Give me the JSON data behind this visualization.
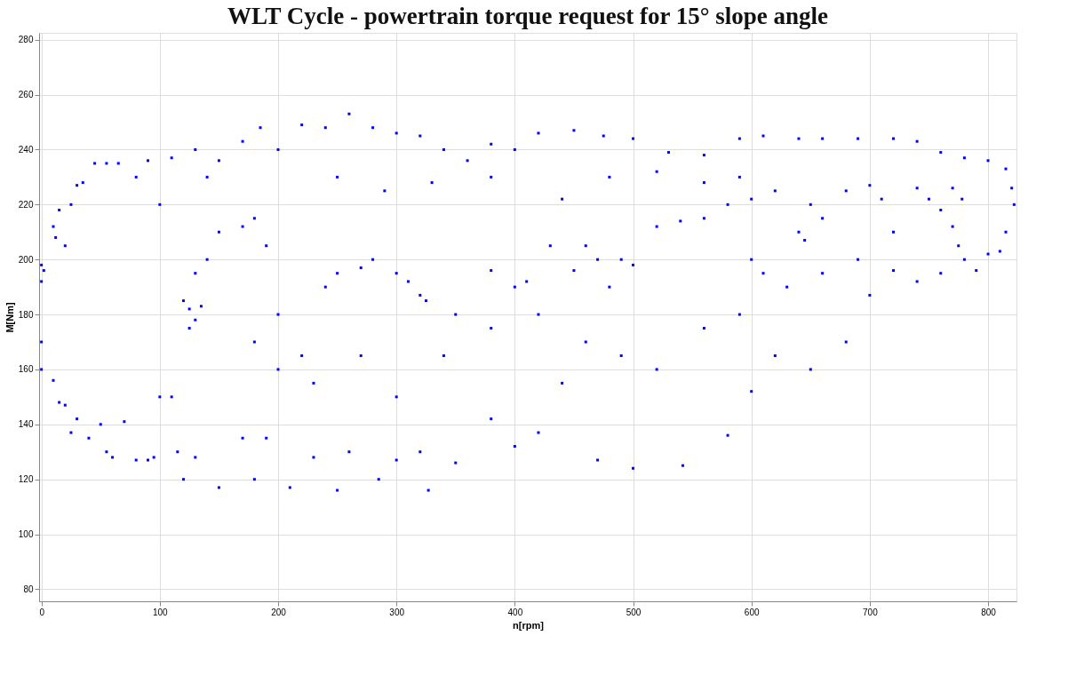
{
  "chart_data": {
    "type": "scatter",
    "title": "WLT Cycle - powertrain torque request for 15° slope angle",
    "xlabel": "n[rpm]",
    "ylabel": "M[Nm]",
    "xlim": [
      -2,
      824
    ],
    "ylim": [
      75.6,
      282.5
    ],
    "xticks": [
      0,
      100,
      200,
      300,
      400,
      500,
      600,
      700,
      800
    ],
    "yticks": [
      80,
      100,
      120,
      140,
      160,
      180,
      200,
      220,
      240,
      260,
      280
    ],
    "grid": true,
    "marker": "square",
    "series": [
      {
        "color": "#0000ff",
        "x": [
          0,
          0,
          0,
          0,
          2,
          10,
          12,
          15,
          20,
          25,
          30,
          35,
          45,
          55,
          65,
          80,
          90,
          110,
          130,
          150,
          170,
          185,
          200,
          220,
          240,
          260,
          280,
          300,
          320,
          340,
          360,
          380,
          400,
          420,
          450,
          475,
          500,
          530,
          560,
          590,
          610,
          640,
          660,
          690,
          720,
          740,
          760,
          780,
          800,
          815,
          820,
          822,
          815,
          810,
          800,
          790,
          775,
          770,
          778,
          770,
          760,
          750,
          740,
          10,
          15,
          20,
          25,
          30,
          40,
          50,
          55,
          60,
          70,
          80,
          90,
          95,
          100,
          110,
          115,
          120,
          130,
          150,
          170,
          180,
          190,
          210,
          230,
          250,
          260,
          285,
          300,
          320,
          327,
          350,
          380,
          400,
          420,
          440,
          470,
          500,
          542,
          580,
          600,
          620,
          650,
          680,
          700,
          720,
          740,
          760,
          780,
          120,
          125,
          130,
          135,
          125,
          130,
          140,
          150,
          170,
          190,
          200,
          200,
          220,
          240,
          250,
          270,
          280,
          300,
          310,
          320,
          325,
          350,
          380,
          400,
          410,
          430,
          450,
          460,
          470,
          480,
          490,
          500,
          520,
          540,
          560,
          580,
          600,
          620,
          640,
          645,
          660,
          680,
          700,
          710,
          720,
          600,
          610,
          630,
          660,
          690,
          180,
          230,
          270,
          300,
          340,
          380,
          420,
          460,
          490,
          520,
          560,
          590,
          100,
          140,
          180,
          250,
          290,
          330,
          380,
          440,
          480,
          520,
          560,
          590,
          650
        ],
        "values": [
          198,
          192,
          170,
          160,
          196,
          212,
          208,
          218,
          205,
          220,
          227,
          228,
          235,
          235,
          235,
          230,
          236,
          237,
          240,
          236,
          243,
          248,
          240,
          249,
          248,
          253,
          248,
          246,
          245,
          240,
          236,
          242,
          240,
          246,
          247,
          245,
          244,
          239,
          238,
          244,
          245,
          244,
          244,
          244,
          244,
          243,
          239,
          237,
          236,
          233,
          226,
          220,
          210,
          203,
          202,
          196,
          205,
          212,
          222,
          226,
          218,
          222,
          226,
          156,
          148,
          147,
          137,
          142,
          135,
          140,
          130,
          128,
          141,
          127,
          127,
          128,
          150,
          150,
          130,
          120,
          128,
          117,
          135,
          120,
          135,
          117,
          128,
          116,
          130,
          120,
          127,
          130,
          116,
          126,
          142,
          132,
          137,
          155,
          127,
          124,
          125,
          136,
          152,
          165,
          160,
          170,
          187,
          196,
          192,
          195,
          200,
          185,
          182,
          178,
          183,
          175,
          195,
          200,
          210,
          212,
          205,
          180,
          160,
          165,
          190,
          195,
          197,
          200,
          195,
          192,
          187,
          185,
          180,
          196,
          190,
          192,
          205,
          196,
          205,
          200,
          190,
          200,
          198,
          212,
          214,
          215,
          220,
          222,
          225,
          210,
          207,
          215,
          225,
          227,
          222,
          210,
          200,
          195,
          190,
          195,
          200,
          170,
          155,
          165,
          150,
          165,
          175,
          180,
          170,
          165,
          160,
          175,
          180,
          220,
          230,
          215,
          230,
          225,
          228,
          230,
          222,
          230,
          232,
          228,
          230,
          220
        ]
      }
    ]
  }
}
